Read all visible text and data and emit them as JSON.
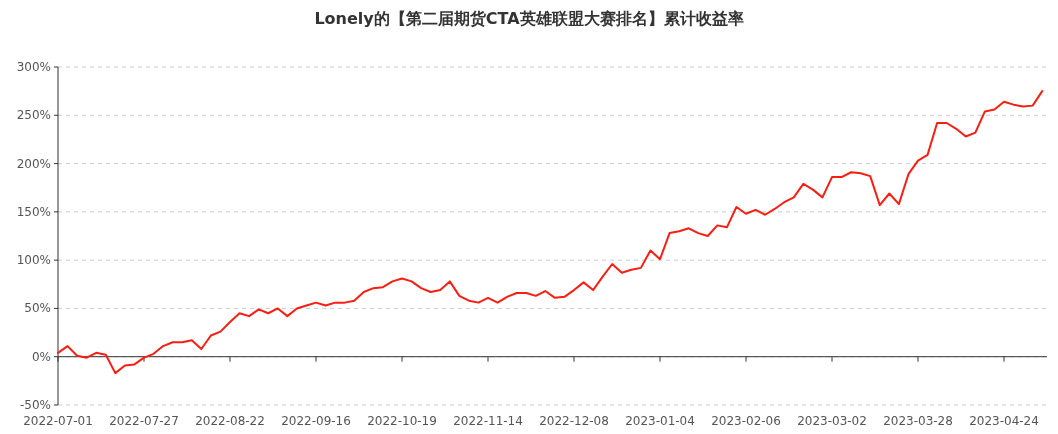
{
  "chart_data": {
    "type": "line",
    "title": "Lonely的【第二届期货CTA英雄联盟大赛排名】累计收益率",
    "categories": [
      "2022-07-01",
      null,
      null,
      null,
      null,
      null,
      null,
      null,
      null,
      "2022-07-27",
      null,
      null,
      null,
      null,
      null,
      null,
      null,
      null,
      "2022-08-22",
      null,
      null,
      null,
      null,
      null,
      null,
      null,
      null,
      "2022-09-16",
      null,
      null,
      null,
      null,
      null,
      null,
      null,
      null,
      "2022-10-19",
      null,
      null,
      null,
      null,
      null,
      null,
      null,
      null,
      "2022-11-14",
      null,
      null,
      null,
      null,
      null,
      null,
      null,
      null,
      "2022-12-08",
      null,
      null,
      null,
      null,
      null,
      null,
      null,
      null,
      "2023-01-04",
      null,
      null,
      null,
      null,
      null,
      null,
      null,
      null,
      "2023-02-06",
      null,
      null,
      null,
      null,
      null,
      null,
      null,
      null,
      "2023-03-02",
      null,
      null,
      null,
      null,
      null,
      null,
      null,
      null,
      "2023-03-28",
      null,
      null,
      null,
      null,
      null,
      null,
      null,
      null,
      "2023-04-24",
      null,
      null,
      null,
      null
    ],
    "series": [
      {
        "color": "#fa1e12",
        "values": [
          4,
          11,
          1,
          -1,
          4,
          2,
          -17,
          -9,
          -8,
          -1,
          3,
          11,
          15,
          15,
          17,
          8,
          22,
          26,
          36,
          45,
          42,
          49,
          45,
          50,
          42,
          50,
          53,
          56,
          53,
          56,
          56,
          58,
          67,
          71,
          72,
          78,
          81,
          78,
          71,
          67,
          69,
          78,
          63,
          58,
          56,
          61,
          56,
          62,
          66,
          66,
          63,
          68,
          61,
          62,
          69,
          77,
          69,
          83,
          96,
          87,
          90,
          92,
          110,
          101,
          128,
          130,
          133,
          128,
          125,
          136,
          134,
          155,
          148,
          152,
          147,
          153,
          160,
          165,
          179,
          173,
          165,
          186,
          186,
          191,
          190,
          187,
          157,
          169,
          158,
          189,
          203,
          209,
          242,
          242,
          236,
          228,
          232,
          254,
          256,
          264,
          261,
          259,
          260,
          275
        ]
      }
    ],
    "ylim": [
      -50,
      300
    ],
    "yticks": [
      {
        "value": -50,
        "label": "-50%"
      },
      {
        "value": 0,
        "label": "0%"
      },
      {
        "value": 50,
        "label": "50%"
      },
      {
        "value": 100,
        "label": "100%"
      },
      {
        "value": 150,
        "label": "150%"
      },
      {
        "value": 200,
        "label": "200%"
      },
      {
        "value": 250,
        "label": "250%"
      },
      {
        "value": 300,
        "label": "300%"
      }
    ],
    "grid": "y",
    "line_style": "solid"
  }
}
